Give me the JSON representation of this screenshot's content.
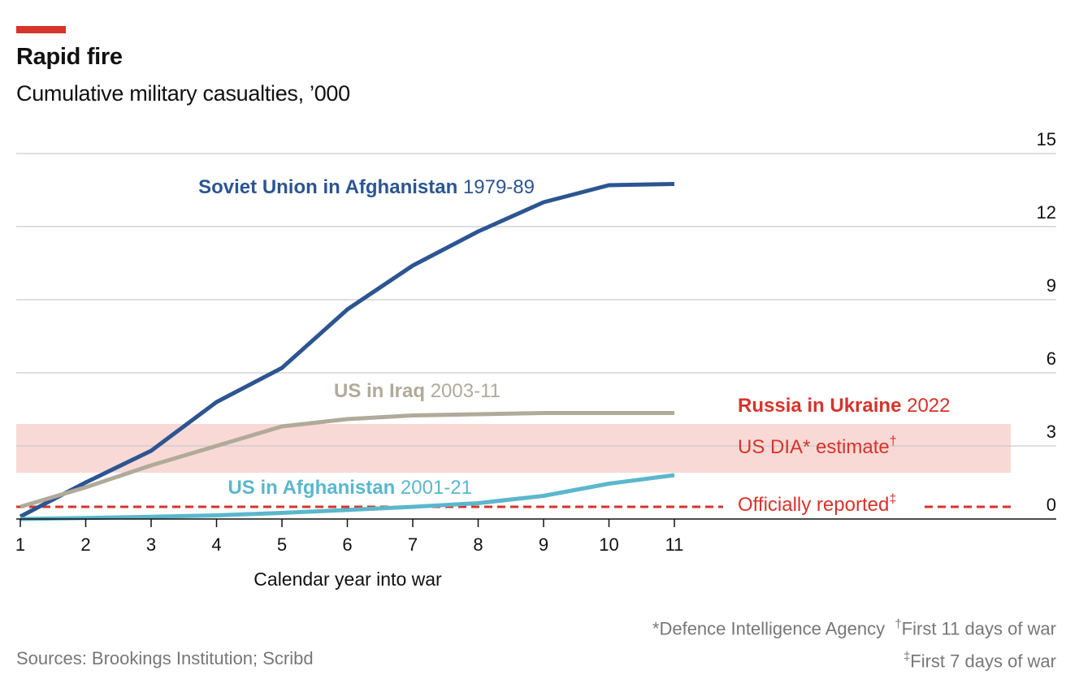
{
  "chart_data": {
    "type": "line",
    "title": "Rapid fire",
    "subtitle": "Cumulative military casualties, ’000",
    "xlabel": "Calendar year into war",
    "x": [
      1,
      2,
      3,
      4,
      5,
      6,
      7,
      8,
      9,
      10,
      11
    ],
    "xlim": [
      1,
      11
    ],
    "ylim": [
      0,
      15
    ],
    "yticks": [
      0,
      3,
      6,
      9,
      12,
      15
    ],
    "y_axis_side": "right",
    "grid": true,
    "series": [
      {
        "name": "Soviet Union in Afghanistan",
        "period": "1979-89",
        "color": "#2c5591",
        "values": [
          0.1,
          1.5,
          2.8,
          4.8,
          6.2,
          8.6,
          10.4,
          11.8,
          13.0,
          13.7,
          13.75
        ]
      },
      {
        "name": "US in Iraq",
        "period": "2003-11",
        "color": "#b0aa9a",
        "values": [
          0.5,
          1.3,
          2.2,
          3.0,
          3.8,
          4.1,
          4.25,
          4.3,
          4.35,
          4.35,
          4.35
        ]
      },
      {
        "name": "US in Afghanistan",
        "period": "2001-21",
        "color": "#5bb7cc",
        "values": [
          0.0,
          0.04,
          0.09,
          0.15,
          0.25,
          0.37,
          0.5,
          0.65,
          0.95,
          1.45,
          1.8
        ]
      }
    ],
    "ukraine": {
      "label": "Russia in Ukraine",
      "period": "2022",
      "color": "#d6342c",
      "band_color": "#f9d9d6",
      "estimate_range": [
        1.9,
        3.9
      ],
      "estimate_label": "US DIA* estimate",
      "estimate_mark": "†",
      "official_value": 0.5,
      "official_label": "Officially reported",
      "official_mark": "‡"
    }
  },
  "footnotes": {
    "dia": "*Defence Intelligence Agency",
    "dagger_mark": "†",
    "dagger_text": "First 11 days of war",
    "ddagger_mark": "‡",
    "ddagger_text": "First 7 days of war"
  },
  "sources": "Sources: Brookings Institution; Scribd",
  "colors": {
    "accent": "#d6342c",
    "grid": "#cccccc",
    "axis": "#111111"
  }
}
